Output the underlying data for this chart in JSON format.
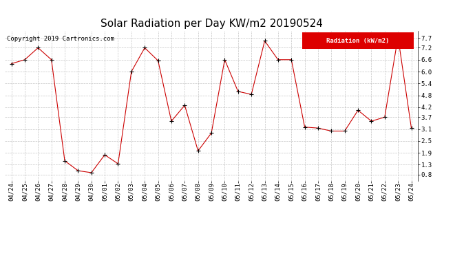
{
  "title": "Solar Radiation per Day KW/m2 20190524",
  "copyright": "Copyright 2019 Cartronics.com",
  "legend_label": "Radiation (kW/m2)",
  "dates": [
    "04/24",
    "04/25",
    "04/26",
    "04/27",
    "04/28",
    "04/29",
    "04/30",
    "05/01",
    "05/02",
    "05/03",
    "05/04",
    "05/05",
    "05/06",
    "05/07",
    "05/08",
    "05/09",
    "05/10",
    "05/11",
    "05/12",
    "05/13",
    "05/14",
    "05/15",
    "05/16",
    "05/17",
    "05/18",
    "05/19",
    "05/20",
    "05/21",
    "05/22",
    "05/23",
    "05/24"
  ],
  "values": [
    6.4,
    6.6,
    7.2,
    6.6,
    1.5,
    1.0,
    0.9,
    1.8,
    1.35,
    6.0,
    7.2,
    6.55,
    3.5,
    4.3,
    2.0,
    2.9,
    6.6,
    5.0,
    4.85,
    7.55,
    6.6,
    6.6,
    3.2,
    3.15,
    3.0,
    3.0,
    4.05,
    3.5,
    3.7,
    7.75,
    3.15
  ],
  "yticks": [
    0.8,
    1.3,
    1.9,
    2.5,
    3.1,
    3.7,
    4.2,
    4.8,
    5.4,
    6.0,
    6.6,
    7.2,
    7.7
  ],
  "ylim": [
    0.5,
    8.05
  ],
  "line_color": "#cc0000",
  "marker": "+",
  "marker_color": "black",
  "bg_color": "#ffffff",
  "grid_color": "#aaaaaa",
  "legend_bg": "#dd0000",
  "legend_fg": "#ffffff",
  "title_fontsize": 11,
  "tick_fontsize": 6.5,
  "copyright_fontsize": 6.5
}
